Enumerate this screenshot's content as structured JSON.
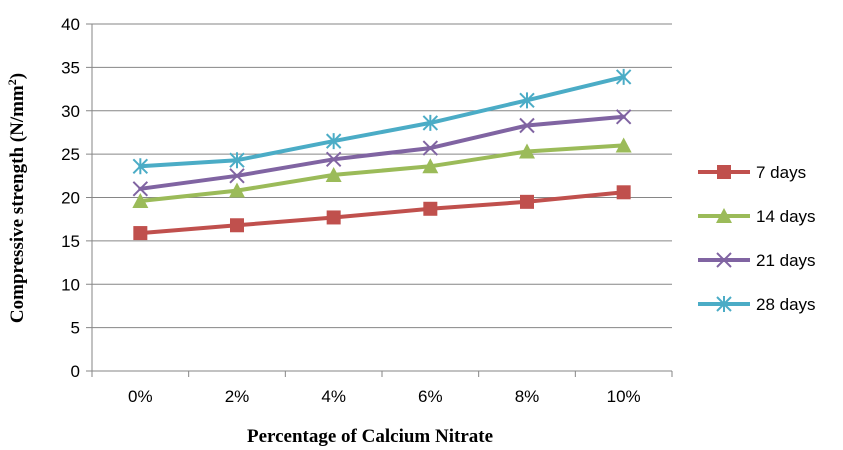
{
  "chart_data": {
    "type": "line",
    "title": "",
    "x": [
      "0%",
      "2%",
      "4%",
      "6%",
      "8%",
      "10%"
    ],
    "xlabel": "Percentage  of Calcium Nitrate",
    "ylabel_main": "Compressive strength (N/mm",
    "ylabel_sup": "2",
    "ylabel_end": ")",
    "ylim": [
      0,
      40
    ],
    "yticks": [
      0,
      5,
      10,
      15,
      20,
      25,
      30,
      35,
      40
    ],
    "grid": "horizontal",
    "legend_position": "right",
    "series": [
      {
        "name": "7 days",
        "color": "#C0504D",
        "marker": "square",
        "values": [
          15.9,
          16.8,
          17.7,
          18.7,
          19.5,
          20.6
        ]
      },
      {
        "name": "14 days",
        "color": "#9BBB59",
        "marker": "triangle",
        "values": [
          19.6,
          20.8,
          22.6,
          23.6,
          25.3,
          26.0
        ]
      },
      {
        "name": "21 days",
        "color": "#8064A2",
        "marker": "x",
        "values": [
          21.0,
          22.5,
          24.4,
          25.7,
          28.3,
          29.3
        ]
      },
      {
        "name": "28 days",
        "color": "#4BACC6",
        "marker": "star",
        "values": [
          23.6,
          24.3,
          26.5,
          28.6,
          31.2,
          33.9
        ]
      }
    ]
  }
}
